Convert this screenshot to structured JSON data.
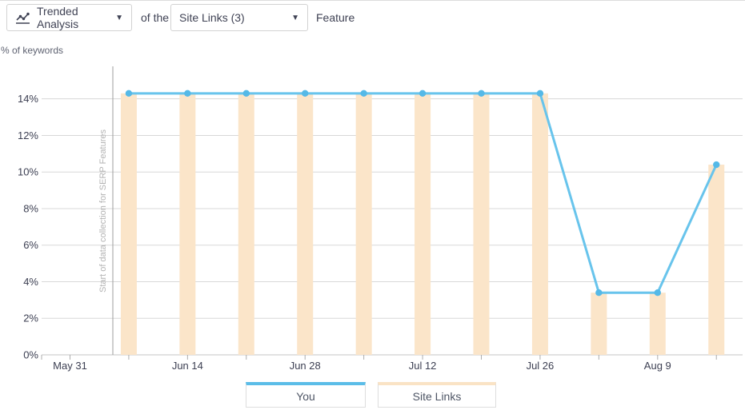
{
  "header": {
    "analysis_dropdown": {
      "label": "Trended Analysis",
      "icon": "trend-chart-icon"
    },
    "connector_text": "of the",
    "feature_dropdown": {
      "label": "Site Links (3)"
    },
    "suffix_text": "Feature"
  },
  "axis_title": "% of keywords",
  "chart_data": {
    "type": "combo",
    "categories": [
      "Jun 7",
      "Jun 14",
      "Jun 21",
      "Jun 28",
      "Jul 5",
      "Jul 12",
      "Jul 19",
      "Jul 26",
      "Aug 2",
      "Aug 9",
      "Aug 16"
    ],
    "x_days": [
      7,
      14,
      21,
      28,
      35,
      42,
      49,
      56,
      63,
      70,
      77
    ],
    "series": [
      {
        "name": "You",
        "type": "line",
        "color": "#68c4ec",
        "marker_color": "#55b9e7",
        "values": [
          14.3,
          14.3,
          14.3,
          14.3,
          14.3,
          14.3,
          14.3,
          14.3,
          3.4,
          3.4,
          10.4
        ]
      },
      {
        "name": "Site Links",
        "type": "bar",
        "color": "#fbe5c9",
        "values": [
          14.3,
          14.3,
          14.3,
          14.3,
          14.3,
          14.3,
          14.3,
          14.3,
          3.4,
          3.4,
          10.4
        ]
      }
    ],
    "ylabel": "% of keywords",
    "ylim": [
      0,
      14
    ],
    "y_tick_labels": [
      "0%",
      "2%",
      "4%",
      "6%",
      "8%",
      "10%",
      "12%",
      "14%"
    ],
    "y_tick_values": [
      0,
      2,
      4,
      6,
      8,
      10,
      12,
      14
    ],
    "x_tick_labels": [
      "May 31",
      "Jun 14",
      "Jun 28",
      "Jul 12",
      "Jul 26",
      "Aug 9"
    ],
    "x_label_days": [
      0,
      14,
      28,
      42,
      56,
      70
    ],
    "grid": "horizontal",
    "legend_position": "bottom",
    "annotation": {
      "text": "Start of data collection for SERP Features",
      "day": 5.1
    }
  },
  "legend": [
    {
      "label": "You",
      "color": "#5bbde8"
    },
    {
      "label": "Site Links",
      "color": "#fae3c5"
    }
  ],
  "colors": {
    "gridline": "#d8d8d8",
    "axis_line": "#c6c6c6",
    "tick": "#adadad",
    "tick_text": "#3c3f52",
    "annotation_line": "#9e9e9e",
    "annotation_text": "#b3b3b3"
  }
}
